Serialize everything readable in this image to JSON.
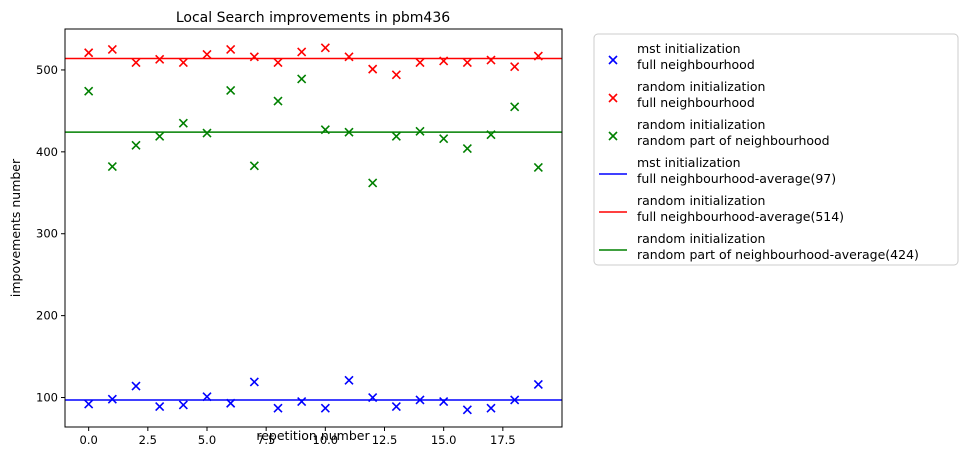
{
  "chart_data": {
    "type": "scatter",
    "title": "Local Search improvements in pbm436",
    "xlabel": "repetition number",
    "ylabel": "impovements number",
    "xlim": [
      -1,
      20
    ],
    "ylim": [
      64,
      550
    ],
    "xticks": [
      0.0,
      2.5,
      5.0,
      7.5,
      10.0,
      12.5,
      15.0,
      17.5
    ],
    "xtick_labels": [
      "0.0",
      "2.5",
      "5.0",
      "7.5",
      "10.0",
      "12.5",
      "15.0",
      "17.5"
    ],
    "yticks": [
      100,
      200,
      300,
      400,
      500
    ],
    "ytick_labels": [
      "100",
      "200",
      "300",
      "400",
      "500"
    ],
    "grid": false,
    "legend_position": "outside-right",
    "x": [
      0,
      1,
      2,
      3,
      4,
      5,
      6,
      7,
      8,
      9,
      10,
      11,
      12,
      13,
      14,
      15,
      16,
      17,
      18,
      19
    ],
    "series": [
      {
        "name": [
          "mst initialization",
          "full neighbourhood"
        ],
        "kind": "scatter",
        "marker": "x",
        "color": "#0000ff",
        "values": [
          92,
          98,
          114,
          89,
          91,
          101,
          93,
          119,
          87,
          95,
          87,
          121,
          100,
          89,
          97,
          95,
          85,
          87,
          97,
          116
        ]
      },
      {
        "name": [
          "random initialization",
          "full neighbourhood"
        ],
        "kind": "scatter",
        "marker": "x",
        "color": "#ff0000",
        "values": [
          521,
          525,
          509,
          513,
          509,
          519,
          525,
          516,
          509,
          522,
          527,
          516,
          501,
          494,
          509,
          511,
          509,
          512,
          504,
          517
        ]
      },
      {
        "name": [
          "random initialization",
          "random part of neighbourhood"
        ],
        "kind": "scatter",
        "marker": "x",
        "color": "#008000",
        "values": [
          474,
          382,
          408,
          419,
          435,
          423,
          475,
          383,
          462,
          489,
          427,
          424,
          362,
          419,
          425,
          416,
          404,
          421,
          455,
          381
        ]
      },
      {
        "name": [
          "mst initialization",
          "full neighbourhood-average(97)"
        ],
        "kind": "hline",
        "color": "#0000ff",
        "value": 97
      },
      {
        "name": [
          "random initialization",
          "full neighbourhood-average(514)"
        ],
        "kind": "hline",
        "color": "#ff0000",
        "value": 514
      },
      {
        "name": [
          "random initialization",
          "random part of neighbourhood-average(424)"
        ],
        "kind": "hline",
        "color": "#008000",
        "value": 424
      }
    ]
  }
}
